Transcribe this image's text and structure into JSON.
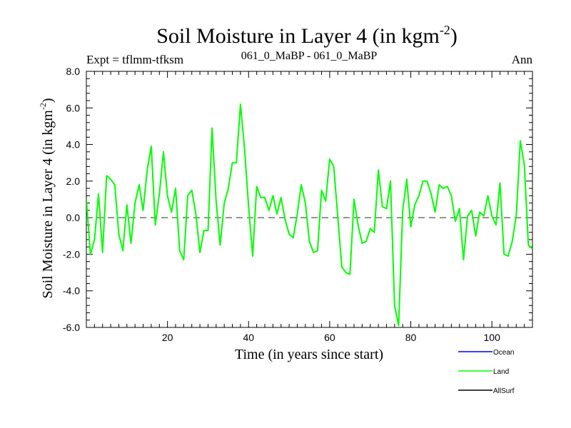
{
  "chart_data": {
    "type": "line",
    "title": "Soil Moisture in Layer 4 (in kgm",
    "title_sup": "-2",
    "title_close": ")",
    "left_label": "Expt = tflmm-tfksm",
    "center_label": "061_0_MaBP - 061_0_MaBP",
    "right_label": "Ann",
    "xlabel": "Time (in years since start)",
    "ylabel": "Soil Moisture in Layer 4 (in kgm",
    "ylabel_sup": "-2",
    "ylabel_close": ")",
    "xlim": [
      0,
      110
    ],
    "ylim": [
      -6.0,
      8.0
    ],
    "x_ticks": [
      20,
      40,
      60,
      80,
      100
    ],
    "x_tick_labels": [
      "20",
      "40",
      "60",
      "80",
      "100"
    ],
    "y_ticks": [
      -6.0,
      -4.0,
      -2.0,
      0.0,
      2.0,
      4.0,
      6.0,
      8.0
    ],
    "y_tick_labels": [
      "-6.0",
      "-4.0",
      "-2.0",
      "0.0",
      "2.0",
      "4.0",
      "6.0",
      "8.0"
    ],
    "reference_line": 0.0,
    "series": [
      {
        "name": "Land",
        "color": "#00ff00",
        "x": [
          0,
          1,
          2,
          3,
          4,
          5,
          6,
          7,
          8,
          9,
          10,
          11,
          12,
          13,
          14,
          15,
          16,
          17,
          18,
          19,
          20,
          21,
          22,
          23,
          24,
          25,
          26,
          27,
          28,
          29,
          30,
          31,
          32,
          33,
          34,
          35,
          36,
          37,
          38,
          39,
          40,
          41,
          42,
          43,
          44,
          45,
          46,
          47,
          48,
          49,
          50,
          51,
          52,
          53,
          54,
          55,
          56,
          57,
          58,
          59,
          60,
          61,
          62,
          63,
          64,
          65,
          66,
          67,
          68,
          69,
          70,
          71,
          72,
          73,
          74,
          75,
          76,
          77,
          78,
          79,
          80,
          81,
          82,
          83,
          84,
          85,
          86,
          87,
          88,
          89,
          90,
          91,
          92,
          93,
          94,
          95,
          96,
          97,
          98,
          99,
          100,
          101,
          102,
          103,
          104,
          105,
          106,
          107,
          108,
          109,
          110
        ],
        "values": [
          1.0,
          -2.0,
          -1.2,
          1.3,
          -1.9,
          2.3,
          2.1,
          1.8,
          -0.9,
          -1.8,
          0.7,
          -1.4,
          0.8,
          1.8,
          0.4,
          2.6,
          3.9,
          -0.4,
          1.3,
          3.6,
          1.2,
          0.3,
          1.6,
          -1.8,
          -2.3,
          1.2,
          1.5,
          0.2,
          -1.9,
          -0.7,
          -0.7,
          4.9,
          0.9,
          -1.5,
          0.8,
          1.6,
          3.0,
          3.0,
          6.2,
          3.8,
          0.6,
          -2.1,
          1.7,
          1.1,
          1.1,
          0.4,
          1.2,
          0.2,
          1.1,
          -0.1,
          -0.9,
          -1.1,
          0.2,
          1.8,
          0.8,
          -1.3,
          -1.9,
          -1.8,
          1.5,
          0.9,
          3.2,
          2.8,
          0.0,
          -2.7,
          -3.0,
          -3.1,
          1.0,
          -0.4,
          -1.4,
          -1.3,
          -0.6,
          -0.8,
          2.6,
          0.6,
          0.5,
          2.0,
          -4.8,
          -5.9,
          0.4,
          2.1,
          -0.5,
          0.7,
          1.2,
          2.0,
          2.0,
          1.3,
          0.3,
          1.8,
          1.6,
          1.7,
          1.2,
          -0.2,
          0.5,
          -2.3,
          0.1,
          0.4,
          -1.0,
          0.3,
          0.1,
          1.2,
          0.1,
          -0.4,
          1.9,
          -2.0,
          -2.1,
          -1.3,
          0.1,
          4.2,
          2.9,
          -1.5,
          -1.7
        ]
      }
    ],
    "legend_position": "bottom-right",
    "legend": [
      {
        "name": "Ocean",
        "color": "#0000ff"
      },
      {
        "name": "Land",
        "color": "#00ff00"
      },
      {
        "name": "AllSurf",
        "color": "#000000"
      }
    ]
  }
}
